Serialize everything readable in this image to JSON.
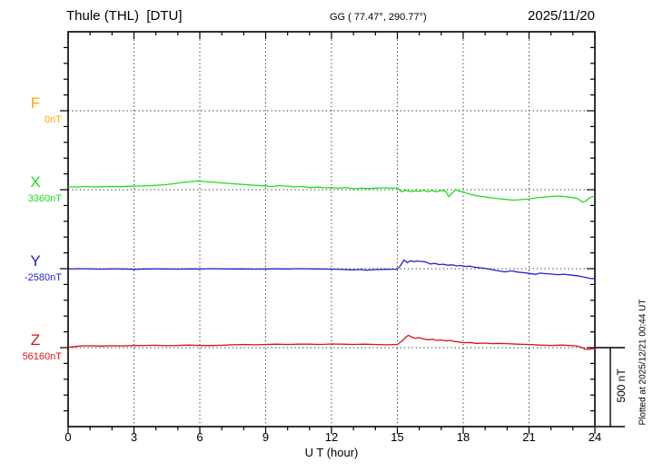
{
  "header": {
    "station_title": "Thule (THL)  [DTU]",
    "coords": "GG ( 77.47°, 290.77°)",
    "date": "2025/11/20"
  },
  "x_axis": {
    "label": "U T (hour)"
  },
  "scale_bar": {
    "label": "500 nT",
    "nT": 500
  },
  "plotted_at": "Plotted at 2025/12/21 00:44 UT",
  "colors": {
    "frame": "#000000",
    "grid": "#333333",
    "F": "#FFAA00",
    "X": "#22DD22",
    "Y": "#2222CC",
    "Z": "#DD1111"
  },
  "chart_data": {
    "type": "line",
    "title": "Thule (THL) [DTU] magnetogram",
    "xlabel": "U T (hour)",
    "x_range_hours": [
      0,
      24
    ],
    "x_ticks": [
      0,
      3,
      6,
      9,
      12,
      15,
      18,
      21,
      24
    ],
    "x_minor_tick_hours": 1,
    "grid": "dotted vertical lines every 3 h; dotted horizontal line at each component baseline",
    "legend_position": "left margin (component letters F, X, Y, Z with baseline values)",
    "y_units": "nT",
    "nT_per_minor_tick": 100,
    "scale_bar_nT": 500,
    "series": [
      {
        "label": "F",
        "baseline_label": "0nT",
        "baseline_value_nT": 0,
        "color": "#FFAA00",
        "note": "no visible trace (flat / not plotted)",
        "points": []
      },
      {
        "label": "X",
        "baseline_label": "3360nT",
        "baseline_value_nT": 3360,
        "color": "#22DD22",
        "points": [
          [
            0,
            18
          ],
          [
            0.4,
            17
          ],
          [
            0.8,
            20
          ],
          [
            1.2,
            17
          ],
          [
            1.6,
            19
          ],
          [
            2,
            20
          ],
          [
            2.4,
            19
          ],
          [
            2.8,
            22
          ],
          [
            3.2,
            23
          ],
          [
            3.6,
            25
          ],
          [
            4,
            28
          ],
          [
            4.4,
            31
          ],
          [
            4.8,
            38
          ],
          [
            5.2,
            46
          ],
          [
            5.6,
            52
          ],
          [
            5.9,
            56
          ],
          [
            6.2,
            52
          ],
          [
            6.5,
            49
          ],
          [
            7,
            43
          ],
          [
            7.5,
            38
          ],
          [
            8,
            33
          ],
          [
            8.5,
            28
          ],
          [
            9,
            24
          ],
          [
            9.3,
            20
          ],
          [
            9.6,
            26
          ],
          [
            10,
            23
          ],
          [
            10.3,
            17
          ],
          [
            10.7,
            20
          ],
          [
            11,
            13
          ],
          [
            11.4,
            16
          ],
          [
            11.7,
            12
          ],
          [
            12,
            14
          ],
          [
            12.3,
            9
          ],
          [
            12.7,
            13
          ],
          [
            13,
            6
          ],
          [
            13.4,
            10
          ],
          [
            13.7,
            7
          ],
          [
            14,
            10
          ],
          [
            14.4,
            12
          ],
          [
            14.7,
            9
          ],
          [
            15,
            11
          ],
          [
            15.2,
            -14
          ],
          [
            15.4,
            -4
          ],
          [
            15.6,
            -12
          ],
          [
            15.8,
            -7
          ],
          [
            16,
            -11
          ],
          [
            16.2,
            -4
          ],
          [
            16.4,
            -12
          ],
          [
            16.6,
            -6
          ],
          [
            16.8,
            -13
          ],
          [
            17,
            -5
          ],
          [
            17.2,
            -9
          ],
          [
            17.35,
            -45
          ],
          [
            17.5,
            -22
          ],
          [
            17.65,
            2
          ],
          [
            17.8,
            -10
          ],
          [
            18,
            -13
          ],
          [
            18.3,
            -28
          ],
          [
            18.6,
            -38
          ],
          [
            19,
            -46
          ],
          [
            19.3,
            -52
          ],
          [
            19.6,
            -57
          ],
          [
            20,
            -62
          ],
          [
            20.3,
            -66
          ],
          [
            20.6,
            -63
          ],
          [
            21,
            -58
          ],
          [
            21.3,
            -52
          ],
          [
            21.6,
            -48
          ],
          [
            22,
            -43
          ],
          [
            22.3,
            -40
          ],
          [
            22.6,
            -43
          ],
          [
            23,
            -50
          ],
          [
            23.2,
            -56
          ],
          [
            23.45,
            -80
          ],
          [
            23.6,
            -70
          ],
          [
            23.75,
            -52
          ],
          [
            23.9,
            -44
          ],
          [
            24,
            -40
          ]
        ]
      },
      {
        "label": "Y",
        "baseline_label": "-2580nT",
        "baseline_value_nT": -2580,
        "color": "#2222CC",
        "points": [
          [
            0,
            -2
          ],
          [
            0.5,
            0
          ],
          [
            1,
            -1
          ],
          [
            1.5,
            -3
          ],
          [
            2,
            -1
          ],
          [
            2.5,
            -2
          ],
          [
            3,
            -4
          ],
          [
            3.5,
            -2
          ],
          [
            4,
            -1
          ],
          [
            4.5,
            -2
          ],
          [
            5,
            -3
          ],
          [
            5.5,
            -1
          ],
          [
            6,
            -2
          ],
          [
            6.5,
            0
          ],
          [
            7,
            -1
          ],
          [
            7.5,
            -2
          ],
          [
            8,
            -1
          ],
          [
            8.5,
            -3
          ],
          [
            9,
            -2
          ],
          [
            9.5,
            -1
          ],
          [
            10,
            -2
          ],
          [
            10.5,
            0
          ],
          [
            11,
            -1
          ],
          [
            11.5,
            -2
          ],
          [
            12,
            -3
          ],
          [
            12.5,
            -5
          ],
          [
            13,
            -8
          ],
          [
            13.3,
            -5
          ],
          [
            13.6,
            -9
          ],
          [
            14,
            -6
          ],
          [
            14.5,
            -4
          ],
          [
            15,
            -3
          ],
          [
            15.15,
            20
          ],
          [
            15.3,
            55
          ],
          [
            15.45,
            38
          ],
          [
            15.6,
            50
          ],
          [
            15.75,
            44
          ],
          [
            15.9,
            48
          ],
          [
            16.1,
            46
          ],
          [
            16.3,
            42
          ],
          [
            16.5,
            30
          ],
          [
            16.7,
            34
          ],
          [
            16.9,
            26
          ],
          [
            17.1,
            28
          ],
          [
            17.3,
            22
          ],
          [
            17.5,
            24
          ],
          [
            17.7,
            18
          ],
          [
            17.9,
            20
          ],
          [
            18.1,
            14
          ],
          [
            18.3,
            16
          ],
          [
            18.5,
            10
          ],
          [
            18.8,
            6
          ],
          [
            19,
            2
          ],
          [
            19.3,
            -6
          ],
          [
            19.6,
            -14
          ],
          [
            19.9,
            -20
          ],
          [
            20.2,
            -14
          ],
          [
            20.5,
            -22
          ],
          [
            20.8,
            -26
          ],
          [
            21,
            -30
          ],
          [
            21.3,
            -36
          ],
          [
            21.5,
            -28
          ],
          [
            21.8,
            -32
          ],
          [
            22,
            -34
          ],
          [
            22.3,
            -38
          ],
          [
            22.6,
            -35
          ],
          [
            23,
            -42
          ],
          [
            23.3,
            -47
          ],
          [
            23.6,
            -56
          ],
          [
            23.8,
            -62
          ],
          [
            24,
            -63
          ]
        ]
      },
      {
        "label": "Z",
        "baseline_label": "56160nT",
        "baseline_value_nT": 56160,
        "color": "#DD1111",
        "points": [
          [
            0,
            2
          ],
          [
            0.3,
            7
          ],
          [
            0.6,
            11
          ],
          [
            1,
            12
          ],
          [
            1.5,
            10
          ],
          [
            2,
            12
          ],
          [
            2.5,
            11
          ],
          [
            3,
            13
          ],
          [
            3.5,
            14
          ],
          [
            4,
            15
          ],
          [
            4.5,
            12
          ],
          [
            5,
            14
          ],
          [
            5.5,
            16
          ],
          [
            6,
            14
          ],
          [
            6.5,
            13
          ],
          [
            7,
            15
          ],
          [
            7.5,
            18
          ],
          [
            8,
            20
          ],
          [
            8.5,
            18
          ],
          [
            9,
            20
          ],
          [
            9.5,
            22
          ],
          [
            10,
            20
          ],
          [
            10.5,
            22
          ],
          [
            11,
            22
          ],
          [
            11.5,
            20
          ],
          [
            12,
            23
          ],
          [
            12.5,
            22
          ],
          [
            13,
            20
          ],
          [
            13.5,
            22
          ],
          [
            14,
            20
          ],
          [
            14.5,
            18
          ],
          [
            15,
            20
          ],
          [
            15.2,
            40
          ],
          [
            15.35,
            62
          ],
          [
            15.5,
            78
          ],
          [
            15.65,
            68
          ],
          [
            15.8,
            60
          ],
          [
            16,
            63
          ],
          [
            16.2,
            55
          ],
          [
            16.4,
            50
          ],
          [
            16.6,
            53
          ],
          [
            16.8,
            46
          ],
          [
            17,
            49
          ],
          [
            17.2,
            43
          ],
          [
            17.4,
            46
          ],
          [
            17.6,
            39
          ],
          [
            17.8,
            36
          ],
          [
            18,
            31
          ],
          [
            18.3,
            33
          ],
          [
            18.6,
            27
          ],
          [
            19,
            29
          ],
          [
            19.3,
            25
          ],
          [
            19.6,
            27
          ],
          [
            20,
            25
          ],
          [
            20.5,
            22
          ],
          [
            21,
            20
          ],
          [
            21.5,
            16
          ],
          [
            22,
            14
          ],
          [
            22.5,
            16
          ],
          [
            23,
            12
          ],
          [
            23.2,
            10
          ],
          [
            23.4,
            2
          ],
          [
            23.55,
            -9
          ],
          [
            23.7,
            -11
          ],
          [
            23.85,
            -7
          ],
          [
            24,
            -5
          ]
        ]
      }
    ]
  }
}
